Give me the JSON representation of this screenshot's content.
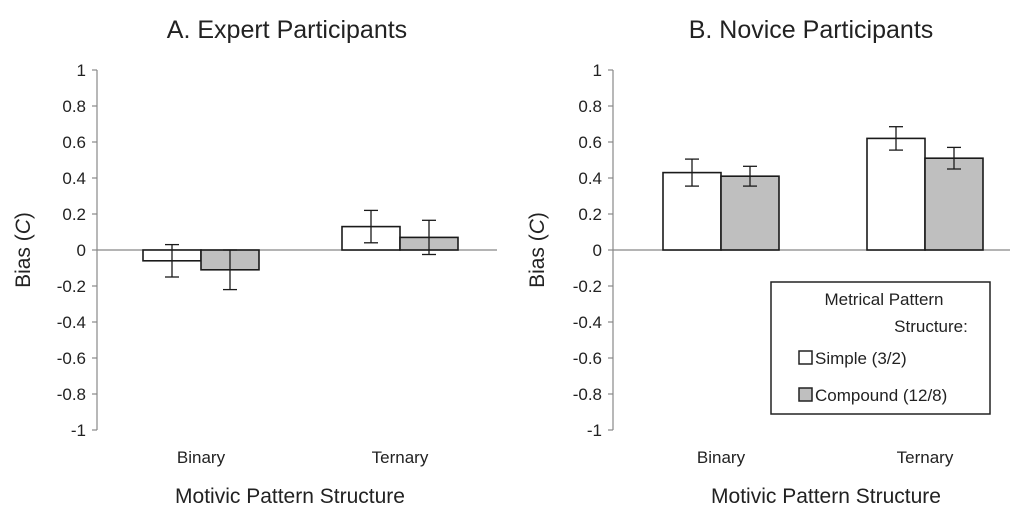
{
  "chart_data": [
    {
      "type": "bar",
      "title": "A. Expert Participants",
      "xlabel": "Motivic Pattern Structure",
      "ylabel_prefix": "Bias (",
      "ylabel_var": "C",
      "ylabel_suffix": ")",
      "ylim": [
        -1,
        1
      ],
      "yticks": [
        "1",
        "0.8",
        "0.6",
        "0.4",
        "0.2",
        "0",
        "-0.2",
        "-0.4",
        "-0.6",
        "-0.8",
        "-1"
      ],
      "categories": [
        "Binary",
        "Ternary"
      ],
      "series": [
        {
          "name": "Simple (3/2)",
          "color": "#ffffff",
          "values": [
            -0.06,
            0.13
          ],
          "errors": [
            0.09,
            0.09
          ]
        },
        {
          "name": "Compound (12/8)",
          "color": "#bfbfbf",
          "values": [
            -0.11,
            0.07
          ],
          "errors": [
            0.11,
            0.095
          ]
        }
      ],
      "legend": null
    },
    {
      "type": "bar",
      "title": "B. Novice Participants",
      "xlabel": "Motivic Pattern Structure",
      "ylabel_prefix": "Bias (",
      "ylabel_var": "C",
      "ylabel_suffix": ")",
      "ylim": [
        -1,
        1
      ],
      "yticks": [
        "1",
        "0.8",
        "0.6",
        "0.4",
        "0.2",
        "0",
        "-0.2",
        "-0.4",
        "-0.6",
        "-0.8",
        "-1"
      ],
      "categories": [
        "Binary",
        "Ternary"
      ],
      "series": [
        {
          "name": "Simple (3/2)",
          "color": "#ffffff",
          "values": [
            0.43,
            0.62
          ],
          "errors": [
            0.075,
            0.065
          ]
        },
        {
          "name": "Compound (12/8)",
          "color": "#bfbfbf",
          "values": [
            0.41,
            0.51
          ],
          "errors": [
            0.055,
            0.06
          ]
        }
      ],
      "legend": {
        "title_line1": "Metrical Pattern",
        "title_line2": "Structure:",
        "placement": "bottom-right"
      }
    }
  ]
}
